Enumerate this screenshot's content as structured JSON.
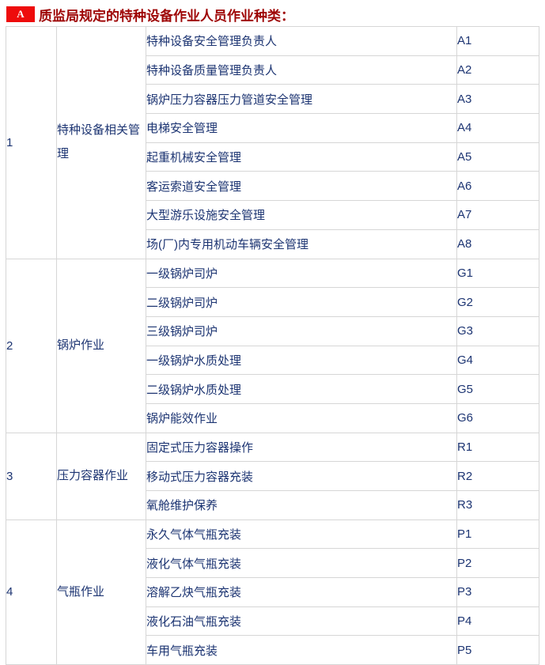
{
  "title": {
    "badge": "A",
    "text": "质监局规定的特种设备作业人员作业种类："
  },
  "colors": {
    "title_red": "#9e0505",
    "badge_bg": "#ee0c0c",
    "badge_fg": "#ffffff",
    "cell_text": "#1c3472",
    "border": "#d6d6d6"
  },
  "table": {
    "groups": [
      {
        "no": "1",
        "category": "特种设备相关管理",
        "items": [
          {
            "name": "特种设备安全管理负责人",
            "code": "A1"
          },
          {
            "name": "特种设备质量管理负责人",
            "code": "A2"
          },
          {
            "name": "锅炉压力容器压力管道安全管理",
            "code": "A3"
          },
          {
            "name": "电梯安全管理",
            "code": "A4"
          },
          {
            "name": "起重机械安全管理",
            "code": "A5"
          },
          {
            "name": "客运索道安全管理",
            "code": "A6"
          },
          {
            "name": "大型游乐设施安全管理",
            "code": "A7"
          },
          {
            "name": "场(厂)内专用机动车辆安全管理",
            "code": "A8"
          }
        ]
      },
      {
        "no": "2",
        "category": "锅炉作业",
        "items": [
          {
            "name": "一级锅炉司炉",
            "code": "G1"
          },
          {
            "name": "二级锅炉司炉",
            "code": "G2"
          },
          {
            "name": "三级锅炉司炉",
            "code": "G3"
          },
          {
            "name": "一级锅炉水质处理",
            "code": "G4"
          },
          {
            "name": "二级锅炉水质处理",
            "code": "G5"
          },
          {
            "name": "锅炉能效作业",
            "code": "G6"
          }
        ]
      },
      {
        "no": "3",
        "category": "压力容器作业",
        "items": [
          {
            "name": "固定式压力容器操作",
            "code": "R1"
          },
          {
            "name": "移动式压力容器充装",
            "code": "R2"
          },
          {
            "name": "氧舱维护保养",
            "code": "R3"
          }
        ]
      },
      {
        "no": "4",
        "category": "气瓶作业",
        "items": [
          {
            "name": "永久气体气瓶充装",
            "code": "P1"
          },
          {
            "name": "液化气体气瓶充装",
            "code": "P2"
          },
          {
            "name": "溶解乙炔气瓶充装",
            "code": "P3"
          },
          {
            "name": "液化石油气瓶充装",
            "code": "P4"
          },
          {
            "name": "车用气瓶充装",
            "code": "P5"
          }
        ]
      }
    ]
  }
}
